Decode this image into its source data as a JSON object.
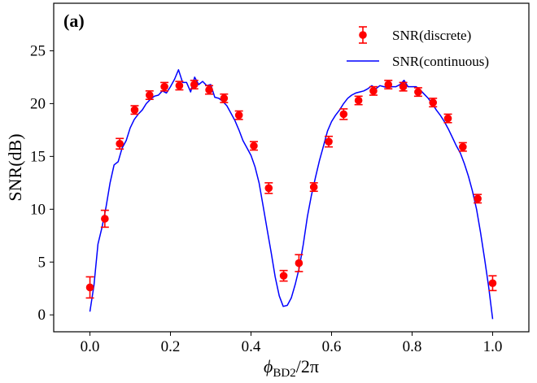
{
  "chart_data": {
    "type": "scatter",
    "panel_label": "(a)",
    "xlabel_main": "ϕ",
    "xlabel_sub": "BD2",
    "xlabel_suffix": "/2π",
    "ylabel": "SNR(dB)",
    "xlim": [
      -0.09,
      1.09
    ],
    "ylim": [
      -1.6,
      29.5
    ],
    "xticks": [
      0.0,
      0.2,
      0.4,
      0.6,
      0.8,
      1.0
    ],
    "xtick_labels": [
      "0.0",
      "0.2",
      "0.4",
      "0.6",
      "0.8",
      "1.0"
    ],
    "yticks": [
      0,
      5,
      10,
      15,
      20,
      25
    ],
    "ytick_labels": [
      "0",
      "5",
      "10",
      "15",
      "20",
      "25"
    ],
    "grid": false,
    "legend_position": "top-right",
    "colors": {
      "discrete": "#ff0000",
      "continuous": "#0000ff"
    },
    "series": [
      {
        "name": "SNR(discrete)",
        "kind": "errorbar",
        "x": [
          0.0,
          0.037,
          0.074,
          0.111,
          0.148,
          0.185,
          0.222,
          0.259,
          0.296,
          0.333,
          0.37,
          0.407,
          0.444,
          0.481,
          0.519,
          0.556,
          0.593,
          0.63,
          0.667,
          0.704,
          0.741,
          0.778,
          0.815,
          0.852,
          0.889,
          0.926,
          0.963,
          1.0
        ],
        "y": [
          2.6,
          9.1,
          16.2,
          19.4,
          20.8,
          21.6,
          21.7,
          21.8,
          21.3,
          20.5,
          18.9,
          16.0,
          12.0,
          3.7,
          4.9,
          12.1,
          16.4,
          19.0,
          20.3,
          21.2,
          21.8,
          21.6,
          21.1,
          20.1,
          18.6,
          15.9,
          11.0,
          3.0
        ],
        "yerr": [
          1.0,
          0.8,
          0.5,
          0.4,
          0.4,
          0.4,
          0.4,
          0.4,
          0.4,
          0.4,
          0.4,
          0.4,
          0.5,
          0.5,
          0.8,
          0.4,
          0.5,
          0.5,
          0.4,
          0.4,
          0.4,
          0.4,
          0.4,
          0.4,
          0.4,
          0.4,
          0.4,
          0.7
        ]
      },
      {
        "name": "SNR(continuous)",
        "kind": "line",
        "x": [
          0.0,
          0.01,
          0.02,
          0.03,
          0.04,
          0.05,
          0.06,
          0.07,
          0.08,
          0.09,
          0.1,
          0.11,
          0.12,
          0.13,
          0.14,
          0.15,
          0.16,
          0.17,
          0.18,
          0.19,
          0.2,
          0.21,
          0.22,
          0.23,
          0.24,
          0.25,
          0.26,
          0.27,
          0.28,
          0.29,
          0.3,
          0.31,
          0.32,
          0.33,
          0.34,
          0.35,
          0.36,
          0.37,
          0.38,
          0.39,
          0.4,
          0.41,
          0.42,
          0.43,
          0.44,
          0.45,
          0.46,
          0.47,
          0.48,
          0.49,
          0.5,
          0.51,
          0.52,
          0.53,
          0.54,
          0.55,
          0.56,
          0.57,
          0.58,
          0.59,
          0.6,
          0.61,
          0.62,
          0.63,
          0.64,
          0.65,
          0.66,
          0.67,
          0.68,
          0.69,
          0.7,
          0.71,
          0.72,
          0.73,
          0.74,
          0.75,
          0.76,
          0.77,
          0.78,
          0.79,
          0.8,
          0.81,
          0.82,
          0.83,
          0.84,
          0.85,
          0.86,
          0.87,
          0.88,
          0.89,
          0.9,
          0.91,
          0.92,
          0.93,
          0.94,
          0.95,
          0.96,
          0.97,
          0.98,
          0.99,
          1.0
        ],
        "y": [
          0.3,
          2.8,
          6.7,
          8.3,
          10.2,
          12.5,
          14.2,
          14.5,
          15.8,
          16.5,
          17.7,
          18.5,
          19.0,
          19.4,
          20.0,
          20.4,
          20.7,
          20.8,
          21.2,
          21.0,
          21.6,
          22.3,
          23.2,
          22.0,
          22.0,
          21.1,
          22.5,
          21.8,
          22.1,
          21.7,
          21.8,
          20.6,
          20.5,
          20.2,
          19.8,
          19.1,
          18.4,
          17.5,
          16.5,
          15.8,
          15.1,
          14.0,
          12.5,
          10.3,
          8.1,
          5.9,
          3.6,
          1.8,
          0.8,
          0.9,
          1.6,
          2.9,
          4.5,
          6.7,
          9.3,
          11.3,
          13.0,
          14.6,
          16.0,
          17.4,
          18.3,
          18.9,
          19.4,
          20.0,
          20.5,
          20.8,
          21.0,
          21.1,
          21.2,
          21.4,
          21.7,
          21.4,
          21.7,
          21.6,
          21.5,
          21.6,
          21.6,
          21.8,
          22.2,
          21.6,
          21.6,
          21.6,
          21.3,
          20.9,
          20.5,
          20.0,
          19.4,
          18.9,
          18.3,
          17.6,
          16.8,
          16.0,
          15.3,
          14.3,
          13.1,
          11.7,
          10.0,
          7.8,
          5.3,
          2.7,
          -0.4
        ]
      }
    ]
  }
}
